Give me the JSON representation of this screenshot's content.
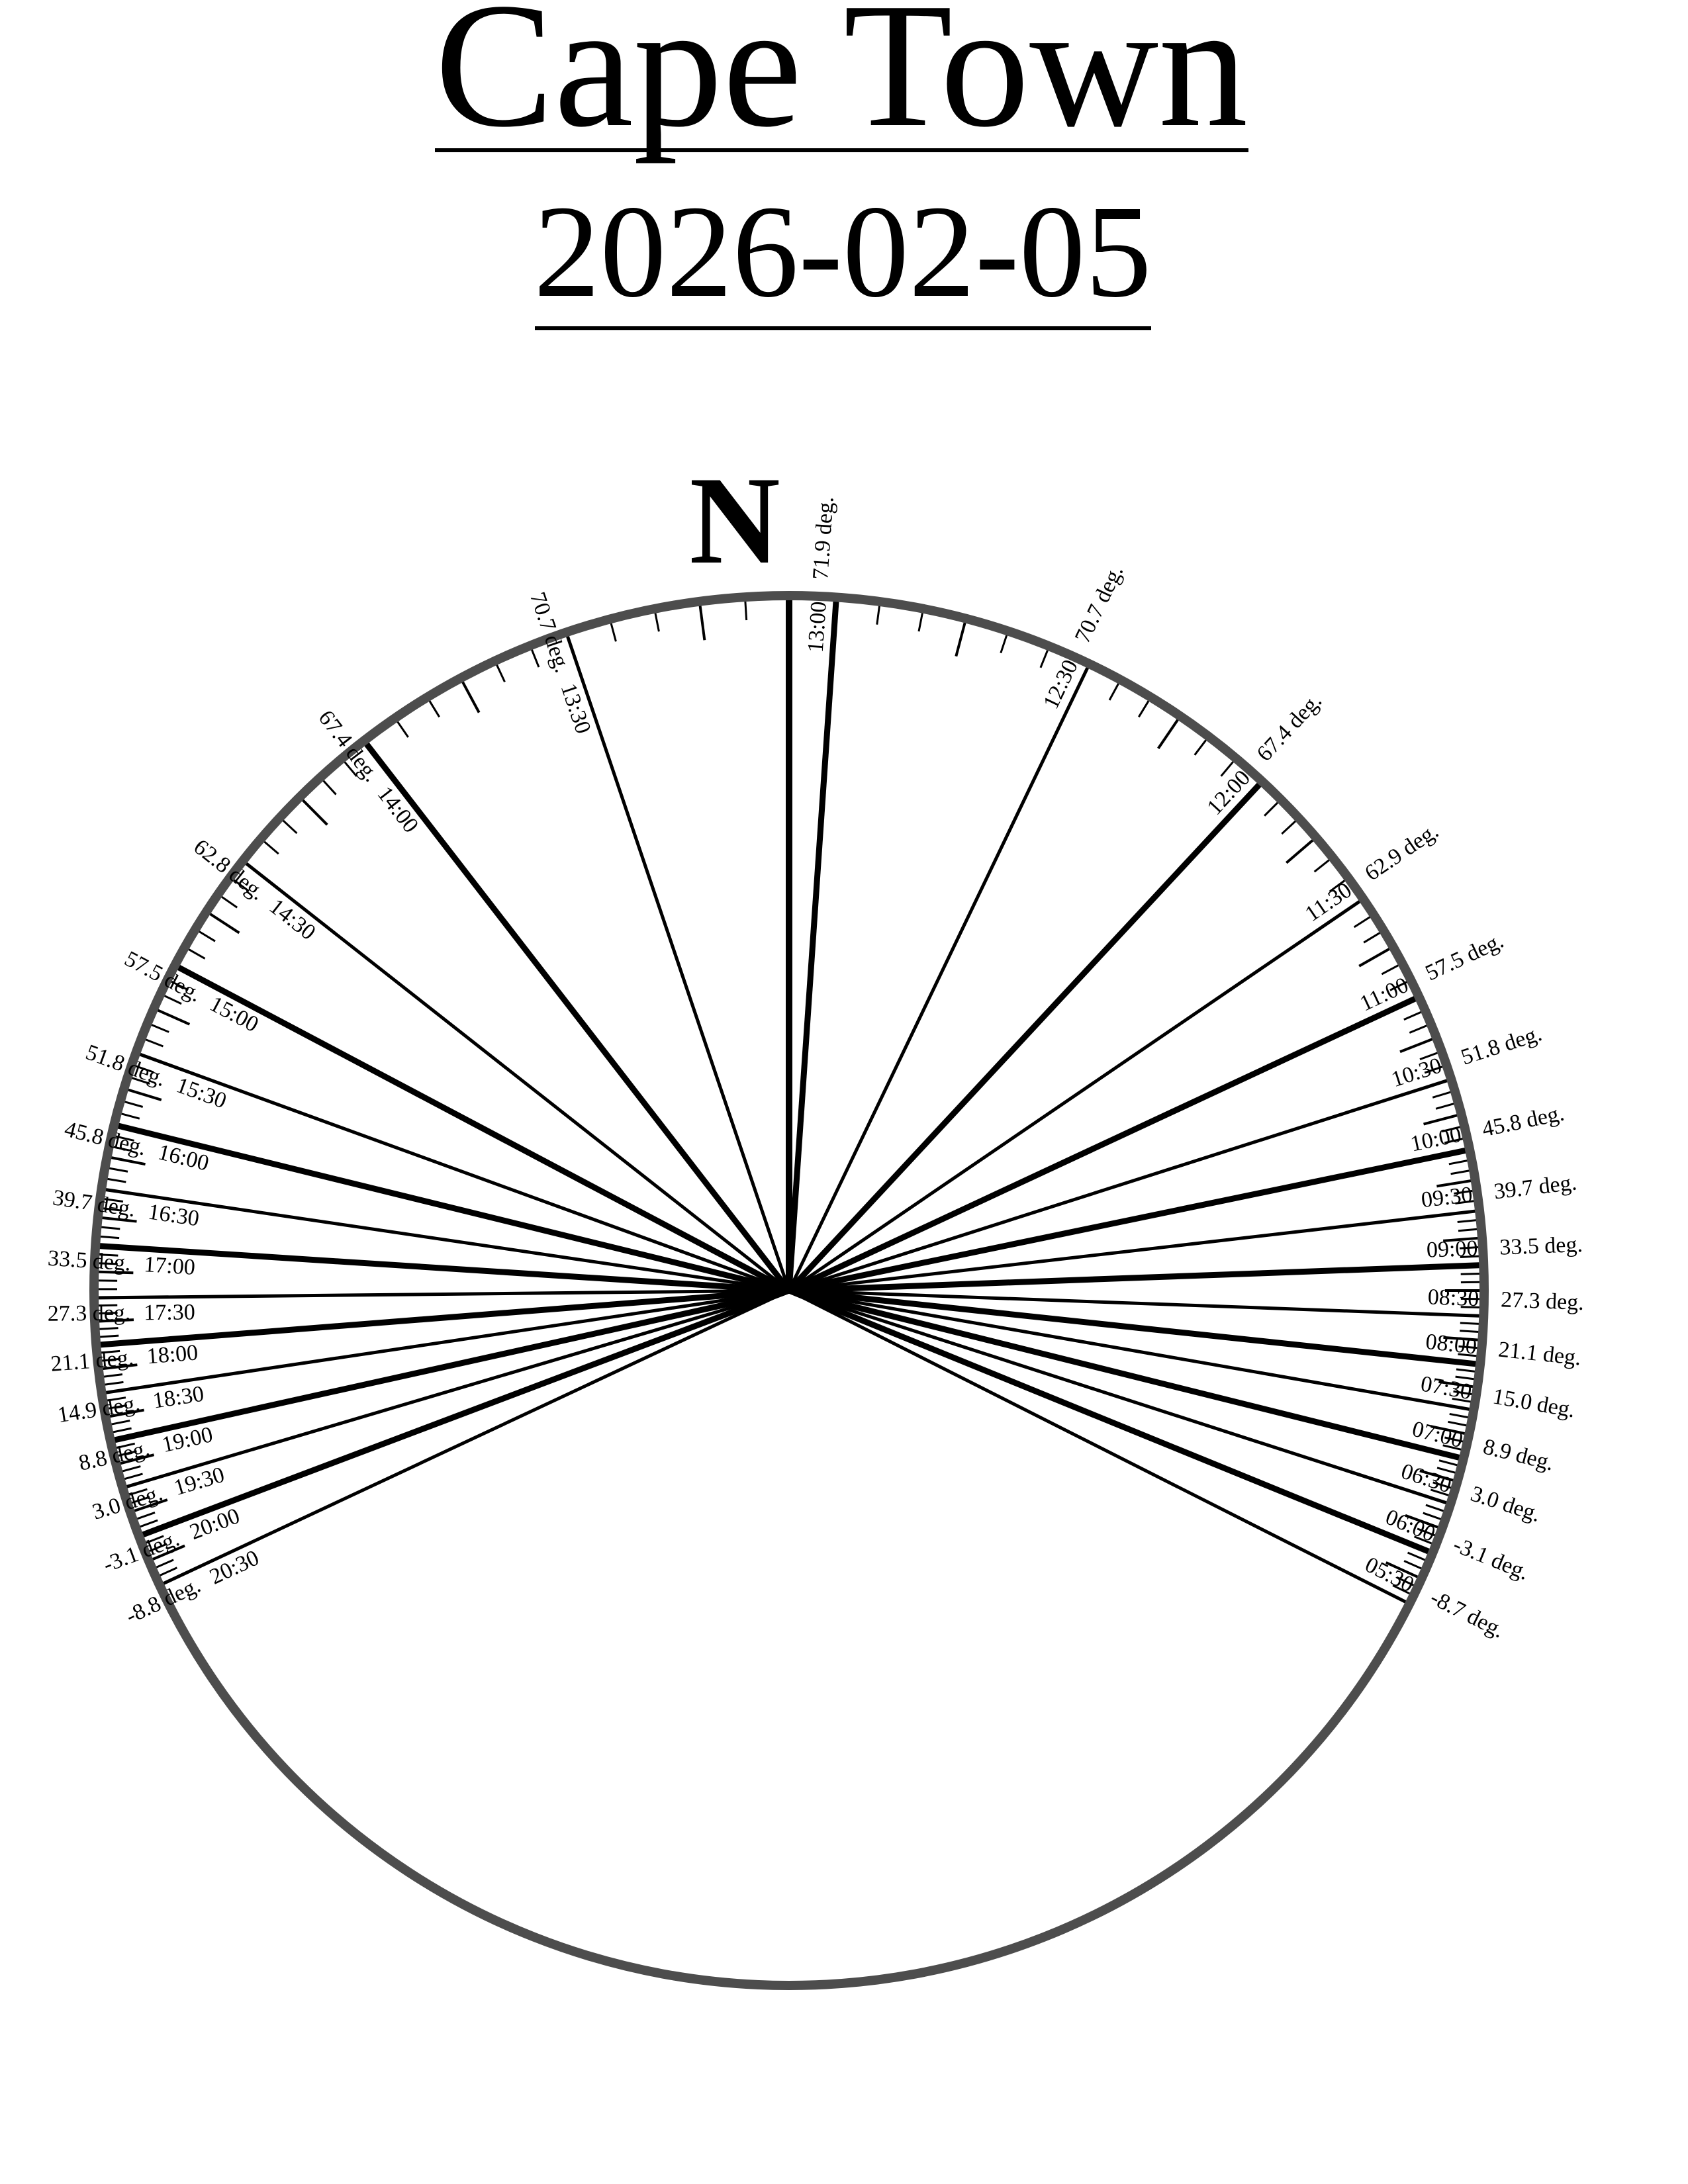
{
  "header": {
    "title": "Cape Town",
    "date": "2026-02-05"
  },
  "compass": {
    "north_label": "N"
  },
  "colors": {
    "ring": "#4d4d4d",
    "lines": "#000000",
    "background": "#ffffff"
  },
  "sun_positions": [
    {
      "time": "05:30",
      "altitude": "-8.7 deg.",
      "azimuth_deg": 116.8
    },
    {
      "time": "06:00",
      "altitude": "-3.1 deg.",
      "azimuth_deg": 112.2
    },
    {
      "time": "06:30",
      "altitude": "3.0 deg.",
      "azimuth_deg": 107.9
    },
    {
      "time": "07:00",
      "altitude": "8.9 deg.",
      "azimuth_deg": 104.0
    },
    {
      "time": "07:30",
      "altitude": "15.0 deg.",
      "azimuth_deg": 99.9
    },
    {
      "time": "08:00",
      "altitude": "21.1 deg.",
      "azimuth_deg": 96.1
    },
    {
      "time": "08:30",
      "altitude": "27.3 deg.",
      "azimuth_deg": 92.1
    },
    {
      "time": "09:00",
      "altitude": "33.5 deg.",
      "azimuth_deg": 87.9
    },
    {
      "time": "09:30",
      "altitude": "39.7 deg.",
      "azimuth_deg": 83.4
    },
    {
      "time": "10:00",
      "altitude": "45.8 deg.",
      "azimuth_deg": 78.3
    },
    {
      "time": "10:30",
      "altitude": "51.8 deg.",
      "azimuth_deg": 72.3
    },
    {
      "time": "11:00",
      "altitude": "57.5 deg.",
      "azimuth_deg": 65.0
    },
    {
      "time": "11:30",
      "altitude": "62.9 deg.",
      "azimuth_deg": 55.7
    },
    {
      "time": "12:00",
      "altitude": "67.4 deg.",
      "azimuth_deg": 42.9
    },
    {
      "time": "12:30",
      "altitude": "70.7 deg.",
      "azimuth_deg": 25.6
    },
    {
      "time": "13:00",
      "altitude": "71.9 deg.",
      "azimuth_deg": 3.9
    },
    {
      "time": "13:30",
      "altitude": "70.7 deg.",
      "azimuth_deg": 341.3
    },
    {
      "time": "14:00",
      "altitude": "67.4 deg.",
      "azimuth_deg": 322.3
    },
    {
      "time": "14:30",
      "altitude": "62.8 deg.",
      "azimuth_deg": 308.2
    },
    {
      "time": "15:00",
      "altitude": "57.5 deg.",
      "azimuth_deg": 297.9
    },
    {
      "time": "15:30",
      "altitude": "51.8 deg.",
      "azimuth_deg": 290.0
    },
    {
      "time": "16:00",
      "altitude": "45.8 deg.",
      "azimuth_deg": 283.8
    },
    {
      "time": "16:30",
      "altitude": "39.7 deg.",
      "azimuth_deg": 278.4
    },
    {
      "time": "17:00",
      "altitude": "33.5 deg.",
      "azimuth_deg": 273.7
    },
    {
      "time": "17:30",
      "altitude": "27.3 deg.",
      "azimuth_deg": 269.4
    },
    {
      "time": "18:00",
      "altitude": "21.1 deg.",
      "azimuth_deg": 265.5
    },
    {
      "time": "18:30",
      "altitude": "14.9 deg.",
      "azimuth_deg": 261.5
    },
    {
      "time": "19:00",
      "altitude": "8.8 deg.",
      "azimuth_deg": 257.5
    },
    {
      "time": "19:30",
      "altitude": "3.0 deg.",
      "azimuth_deg": 253.5
    },
    {
      "time": "20:00",
      "altitude": "-3.1 deg.",
      "azimuth_deg": 249.3
    },
    {
      "time": "20:30",
      "altitude": "-8.8 deg.",
      "azimuth_deg": 244.9
    }
  ],
  "tick_interval_minutes": 5
}
